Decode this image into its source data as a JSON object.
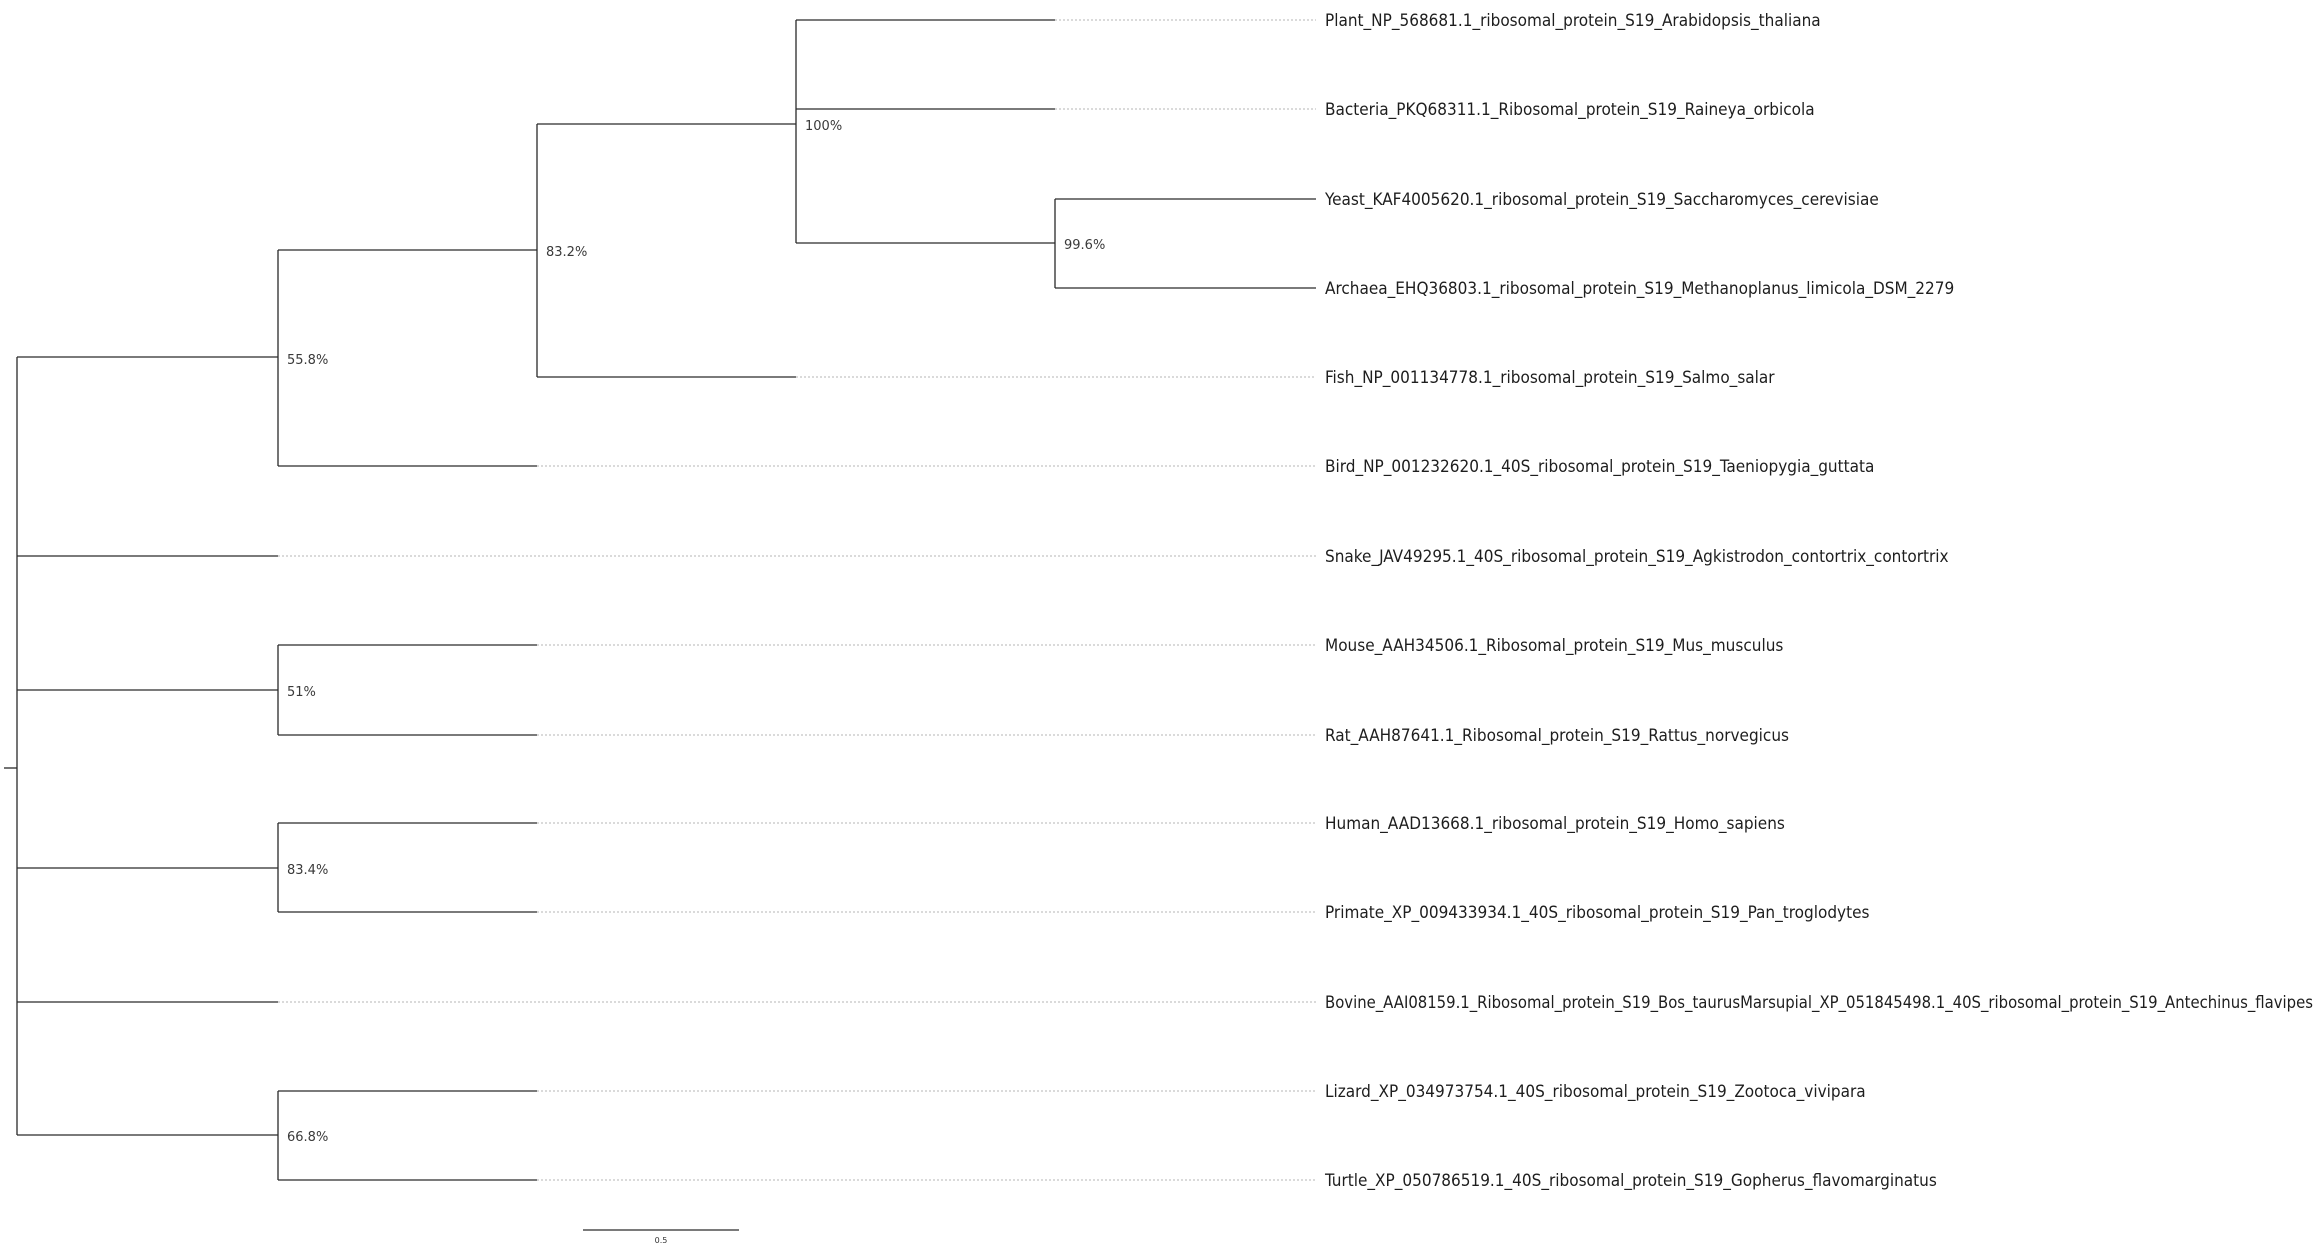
{
  "tree": {
    "leaves": [
      "Plant_NP_568681.1_ribosomal_protein_S19_Arabidopsis_thaliana",
      "Bacteria_PKQ68311.1_Ribosomal_protein_S19_Raineya_orbicola",
      "Yeast_KAF4005620.1_ribosomal_protein_S19_Saccharomyces_cerevisiae",
      "Archaea_EHQ36803.1_ribosomal_protein_S19_Methanoplanus_limicola_DSM_2279",
      "Fish_NP_001134778.1_ribosomal_protein_S19_Salmo_salar",
      "Bird_NP_001232620.1_40S_ribosomal_protein_S19_Taeniopygia_guttata",
      "Snake_JAV49295.1_40S_ribosomal_protein_S19_Agkistrodon_contortrix_contortrix",
      "Mouse_AAH34506.1_Ribosomal_protein_S19_Mus_musculus",
      "Rat_AAH87641.1_Ribosomal_protein_S19_Rattus_norvegicus",
      "Human_AAD13668.1_ribosomal_protein_S19_Homo_sapiens",
      "Primate_XP_009433934.1_40S_ribosomal_protein_S19_Pan_troglodytes",
      "Bovine_AAI08159.1_Ribosomal_protein_S19_Bos_taurusMarsupial_XP_051845498.1_40S_ribosomal_protein_S19_Antechinus_flavipes",
      "Lizard_XP_034973754.1_40S_ribosomal_protein_S19_Zootoca_vivipara",
      "Turtle_XP_050786519.1_40S_ribosomal_protein_S19_Gopherus_flavomarginatus"
    ],
    "support_values": {
      "plant_bacteria_yeast_archaea": "100%",
      "yeast_archaea": "99.6%",
      "plant_to_fish": "83.2%",
      "plant_to_bird": "55.8%",
      "mouse_rat": "51%",
      "human_primate": "83.4%",
      "lizard_turtle": "66.8%"
    },
    "scale_bar_label": "0.5"
  },
  "colors": {
    "branch": "#2a2a2a",
    "guide": "#b4b4b4",
    "text": "#1e1e1e"
  }
}
